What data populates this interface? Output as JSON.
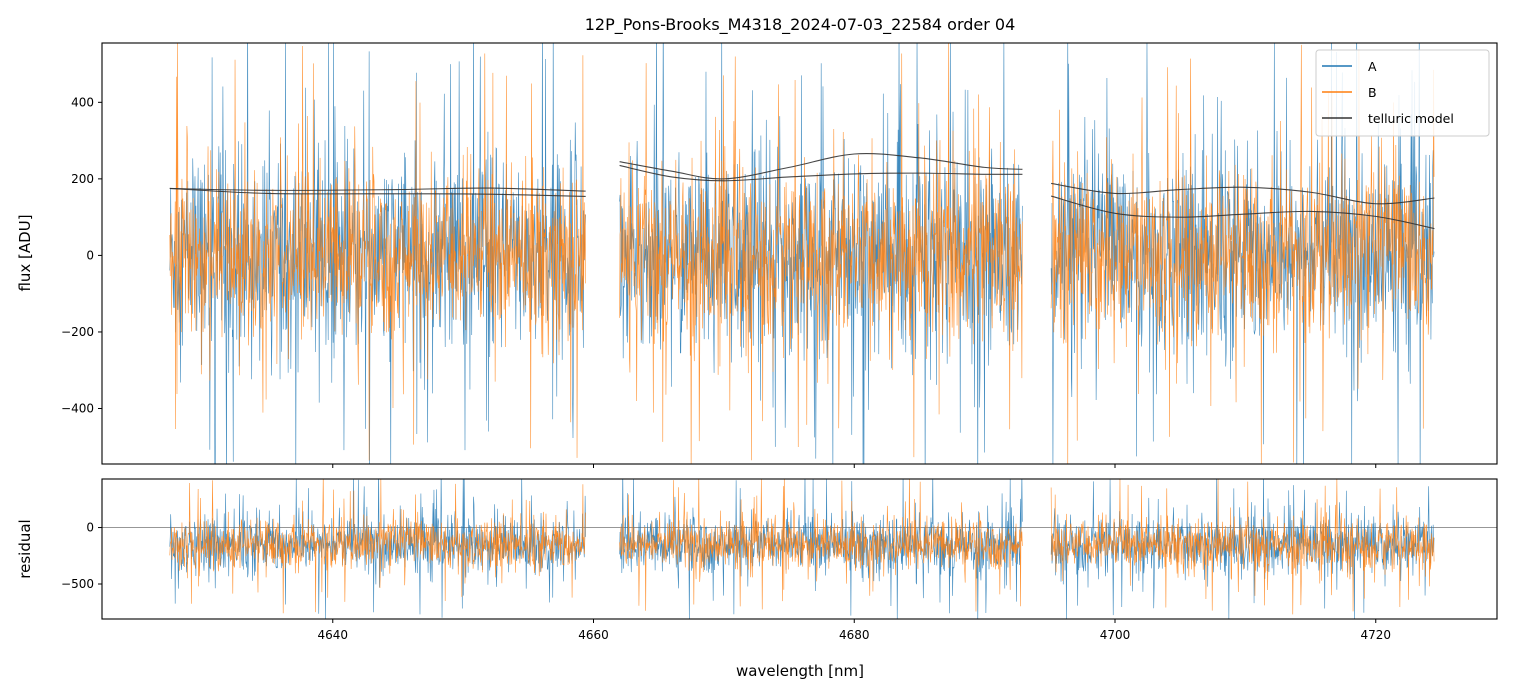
{
  "chart_data": {
    "type": "line",
    "title": "12P_Pons-Brooks_M4318_2024-07-03_22584  order 04",
    "xlabel": "wavelength [nm]",
    "xlim": [
      4622.3,
      4729.3
    ],
    "x_ticks": [
      4640,
      4660,
      4680,
      4700,
      4720
    ],
    "x_tick_labels": [
      "4640",
      "4660",
      "4680",
      "4700",
      "4720"
    ],
    "segments": [
      {
        "x_start": 4627.5,
        "x_end": 4659.4
      },
      {
        "x_start": 4662.0,
        "x_end": 4692.9
      },
      {
        "x_start": 4695.1,
        "x_end": 4724.5
      }
    ],
    "legend": {
      "position": "upper right",
      "entries": [
        "A",
        "B",
        "telluric model"
      ]
    },
    "colors": {
      "A": "#1f77b4",
      "B": "#ff7f0e",
      "model": "#333333",
      "zero_line": "#888888"
    },
    "panels": [
      {
        "name": "flux",
        "ylabel": "flux [ADU]",
        "ylim": [
          -545,
          555
        ],
        "y_ticks": [
          -400,
          -200,
          0,
          200,
          400
        ],
        "y_tick_labels": [
          "−400",
          "−200",
          "0",
          "200",
          "400"
        ],
        "series": [
          {
            "name": "A",
            "center": 0,
            "amplitude": 230,
            "extreme": 650
          },
          {
            "name": "B",
            "center": 0,
            "amplitude": 200,
            "extreme": 560
          }
        ],
        "telluric_model": [
          {
            "name": "telluric model (A)",
            "points": [
              [
                4627.5,
                175
              ],
              [
                4635,
                170
              ],
              [
                4645,
                172
              ],
              [
                4652,
                176
              ],
              [
                4659.4,
                168
              ],
              [
                4662.0,
                245
              ],
              [
                4666,
                220
              ],
              [
                4670,
                200
              ],
              [
                4675,
                230
              ],
              [
                4680,
                265
              ],
              [
                4685,
                255
              ],
              [
                4690,
                230
              ],
              [
                4692.9,
                225
              ],
              [
                4695.1,
                188
              ],
              [
                4700,
                162
              ],
              [
                4705,
                172
              ],
              [
                4710,
                178
              ],
              [
                4715,
                165
              ],
              [
                4720,
                135
              ],
              [
                4724.5,
                150
              ]
            ]
          },
          {
            "name": "telluric model (B)",
            "points": [
              [
                4627.5,
                175
              ],
              [
                4635,
                162
              ],
              [
                4645,
                161
              ],
              [
                4652,
                160
              ],
              [
                4659.4,
                154
              ],
              [
                4662.0,
                235
              ],
              [
                4666,
                205
              ],
              [
                4670,
                195
              ],
              [
                4675,
                205
              ],
              [
                4680,
                213
              ],
              [
                4685,
                215
              ],
              [
                4690,
                212
              ],
              [
                4692.9,
                212
              ],
              [
                4695.1,
                155
              ],
              [
                4700,
                110
              ],
              [
                4705,
                100
              ],
              [
                4710,
                108
              ],
              [
                4715,
                115
              ],
              [
                4720,
                102
              ],
              [
                4724.5,
                70
              ]
            ]
          }
        ]
      },
      {
        "name": "residual",
        "ylabel": "residual",
        "ylim": [
          -810,
          430
        ],
        "y_ticks": [
          -500,
          0
        ],
        "y_tick_labels": [
          "−500",
          "0"
        ],
        "zero_line": 0,
        "series": [
          {
            "name": "A",
            "center": -150,
            "amplitude": 230,
            "extreme": 700
          },
          {
            "name": "B",
            "center": -150,
            "amplitude": 200,
            "extreme": 620
          }
        ]
      }
    ]
  }
}
